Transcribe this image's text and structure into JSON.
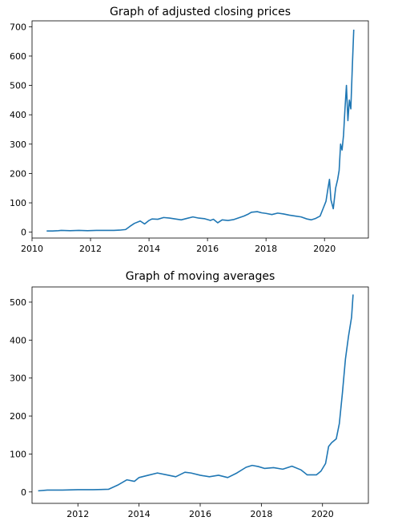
{
  "chart_data": [
    {
      "type": "line",
      "title": "Graph of adjusted closing prices",
      "xlabel": "",
      "ylabel": "",
      "xlim": [
        2010.0,
        2021.5
      ],
      "ylim": [
        -20,
        720
      ],
      "xticks": [
        2010,
        2012,
        2014,
        2016,
        2018,
        2020
      ],
      "xtick_labels": [
        "2010",
        "2012",
        "2014",
        "2016",
        "2018",
        "2020"
      ],
      "yticks": [
        0,
        100,
        200,
        300,
        400,
        500,
        600,
        700
      ],
      "ytick_labels": [
        "0",
        "100",
        "200",
        "300",
        "400",
        "500",
        "600",
        "700"
      ],
      "grid": false,
      "line_color": "#1f77b4",
      "series": [
        {
          "x": [
            2010.5,
            2010.7,
            2010.9,
            2011.0,
            2011.3,
            2011.6,
            2011.9,
            2012.2,
            2012.5,
            2012.8,
            2013.0,
            2013.2,
            2013.35,
            2013.5,
            2013.7,
            2013.85,
            2014.0,
            2014.1,
            2014.3,
            2014.5,
            2014.7,
            2014.9,
            2015.1,
            2015.3,
            2015.5,
            2015.7,
            2015.9,
            2016.1,
            2016.2,
            2016.35,
            2016.5,
            2016.7,
            2016.9,
            2017.1,
            2017.25,
            2017.4,
            2017.5,
            2017.7,
            2017.85,
            2018.0,
            2018.2,
            2018.4,
            2018.6,
            2018.8,
            2019.0,
            2019.2,
            2019.4,
            2019.55,
            2019.7,
            2019.85,
            2019.95,
            2020.05,
            2020.12,
            2020.17,
            2020.22,
            2020.3,
            2020.38,
            2020.45,
            2020.5,
            2020.55,
            2020.6,
            2020.65,
            2020.7,
            2020.75,
            2020.8,
            2020.85,
            2020.9,
            2020.95,
            2021.0
          ],
          "y": [
            4,
            4,
            5,
            6,
            5,
            6,
            5,
            6,
            6,
            6,
            7,
            9,
            20,
            30,
            38,
            28,
            40,
            45,
            44,
            50,
            48,
            45,
            42,
            47,
            52,
            48,
            46,
            40,
            44,
            32,
            42,
            40,
            43,
            50,
            55,
            62,
            68,
            70,
            66,
            64,
            60,
            65,
            62,
            58,
            55,
            52,
            45,
            42,
            47,
            55,
            80,
            105,
            150,
            180,
            110,
            80,
            150,
            180,
            210,
            300,
            280,
            330,
            420,
            500,
            380,
            450,
            420,
            560,
            690
          ]
        }
      ]
    },
    {
      "type": "line",
      "title": "Graph of moving averages",
      "xlabel": "",
      "ylabel": "",
      "xlim": [
        2010.5,
        2021.5
      ],
      "ylim": [
        -30,
        540
      ],
      "xticks": [
        2012,
        2014,
        2016,
        2018,
        2020
      ],
      "xtick_labels": [
        "2012",
        "2014",
        "2016",
        "2018",
        "2020"
      ],
      "yticks": [
        0,
        100,
        200,
        300,
        400,
        500
      ],
      "ytick_labels": [
        "0",
        "100",
        "200",
        "300",
        "400",
        "500"
      ],
      "grid": false,
      "line_color": "#1f77b4",
      "series": [
        {
          "x": [
            2010.7,
            2011.0,
            2011.5,
            2012.0,
            2012.5,
            2013.0,
            2013.3,
            2013.6,
            2013.85,
            2014.0,
            2014.3,
            2014.6,
            2014.9,
            2015.2,
            2015.5,
            2015.7,
            2016.0,
            2016.3,
            2016.6,
            2016.9,
            2017.2,
            2017.5,
            2017.7,
            2017.9,
            2018.1,
            2018.4,
            2018.7,
            2019.0,
            2019.3,
            2019.5,
            2019.8,
            2019.95,
            2020.1,
            2020.2,
            2020.3,
            2020.45,
            2020.55,
            2020.65,
            2020.75,
            2020.85,
            2020.95,
            2021.0
          ],
          "y": [
            3,
            5,
            5,
            6,
            6,
            7,
            18,
            32,
            28,
            38,
            44,
            50,
            45,
            40,
            52,
            50,
            44,
            40,
            44,
            38,
            50,
            65,
            70,
            67,
            62,
            64,
            60,
            68,
            58,
            45,
            45,
            55,
            75,
            120,
            130,
            140,
            180,
            260,
            350,
            410,
            460,
            520
          ]
        }
      ]
    }
  ]
}
